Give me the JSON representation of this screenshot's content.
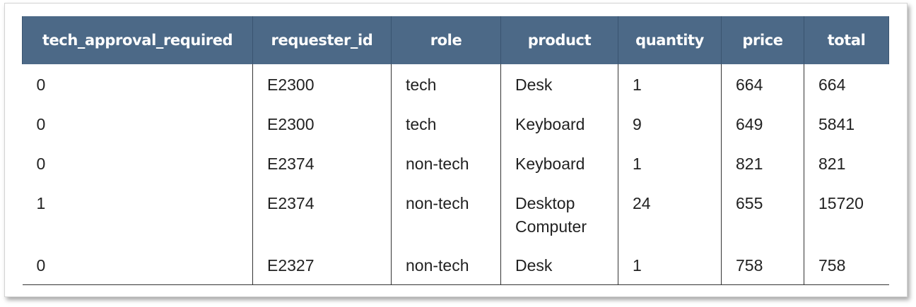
{
  "table": {
    "headers": [
      "tech_approval_required",
      "requester_id",
      "role",
      "product",
      "quantity",
      "price",
      "total"
    ],
    "rows": [
      [
        "0",
        "E2300",
        "tech",
        "Desk",
        "1",
        "664",
        "664"
      ],
      [
        "0",
        "E2300",
        "tech",
        "Keyboard",
        "9",
        "649",
        "5841"
      ],
      [
        "0",
        "E2374",
        "non-tech",
        "Keyboard",
        "1",
        "821",
        "821"
      ],
      [
        "1",
        "E2374",
        "non-tech",
        "Desktop\nComputer",
        "24",
        "655",
        "15720"
      ],
      [
        "0",
        "E2327",
        "non-tech",
        "Desk",
        "1",
        "758",
        "758"
      ]
    ]
  },
  "colors": {
    "header_bg": "#4c6987",
    "header_text": "#ffffff",
    "cell_text": "#222222",
    "rule": "#333333"
  }
}
